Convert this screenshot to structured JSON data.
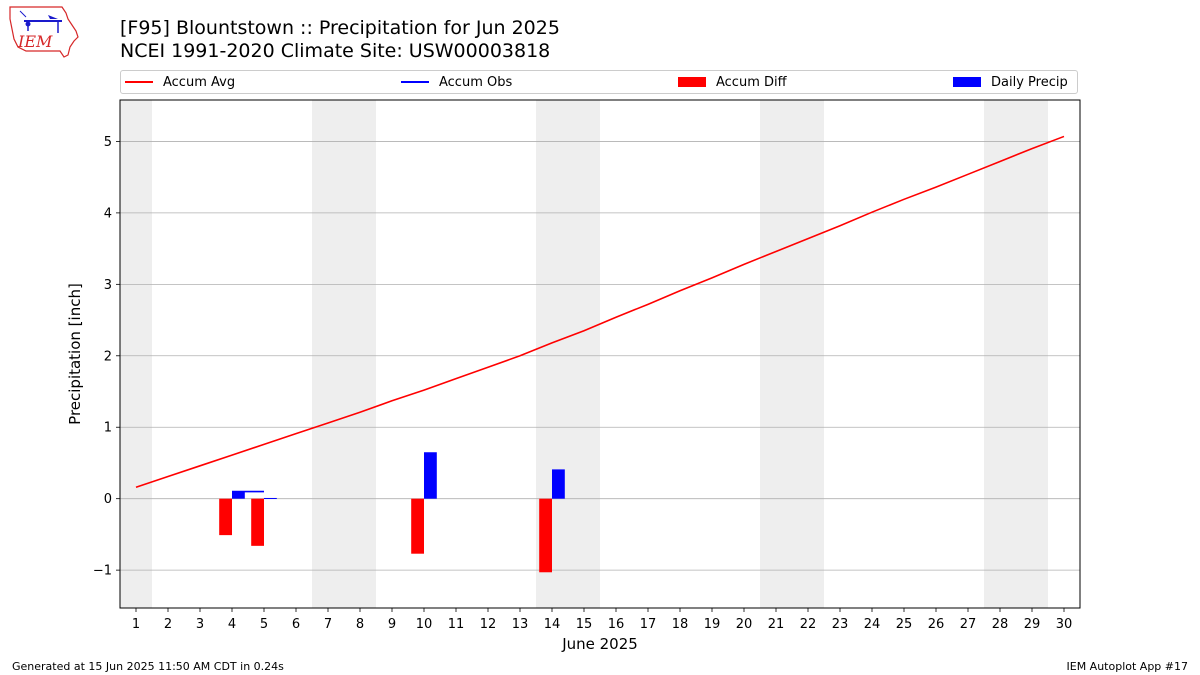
{
  "header": {
    "logo_text": "IEM",
    "title_line1": "[F95] Blountstown :: Precipitation for Jun 2025",
    "title_line2": "NCEI 1991-2020 Climate Site: USW00003818"
  },
  "legend": {
    "items": [
      {
        "label": "Accum Avg",
        "kind": "line",
        "color": "#ff0000"
      },
      {
        "label": "Accum Obs",
        "kind": "line",
        "color": "#0000ff"
      },
      {
        "label": "Accum Diff",
        "kind": "box",
        "color": "#ff0000"
      },
      {
        "label": "Daily Precip",
        "kind": "box",
        "color": "#0000ff"
      }
    ]
  },
  "footer": {
    "left": "Generated at 15 Jun 2025 11:50 AM CDT in 0.24s",
    "right": "IEM Autoplot App #17"
  },
  "chart_data": {
    "type": "bar",
    "title": "[F95] Blountstown :: Precipitation for Jun 2025",
    "subtitle": "NCEI 1991-2020 Climate Site: USW00003818",
    "xlabel": "June 2025",
    "ylabel": "Precipitation [inch]",
    "xlim": [
      0.5,
      30.5
    ],
    "ylim": [
      -1.53,
      5.58
    ],
    "yticks": [
      -1,
      0,
      1,
      2,
      3,
      4,
      5
    ],
    "ytick_labels": [
      "−1",
      "0",
      "1",
      "2",
      "3",
      "4",
      "5"
    ],
    "x": [
      1,
      2,
      3,
      4,
      5,
      6,
      7,
      8,
      9,
      10,
      11,
      12,
      13,
      14,
      15,
      16,
      17,
      18,
      19,
      20,
      21,
      22,
      23,
      24,
      25,
      26,
      27,
      28,
      29,
      30
    ],
    "grid": "horizontal",
    "weekend_days": [
      1,
      7,
      8,
      14,
      15,
      21,
      22,
      28,
      29
    ],
    "colors": {
      "avg": "#ff0000",
      "obs": "#0000ff",
      "diff": "#ff0000",
      "daily": "#0000ff",
      "weekend": "#eeeeee",
      "grid": "#b0b0b0"
    },
    "series": [
      {
        "name": "Accum Avg",
        "kind": "line",
        "values": [
          0.16,
          0.31,
          0.46,
          0.61,
          0.76,
          0.91,
          1.06,
          1.21,
          1.37,
          1.52,
          1.68,
          1.84,
          2.0,
          2.18,
          2.35,
          2.54,
          2.72,
          2.91,
          3.09,
          3.28,
          3.46,
          3.64,
          3.82,
          4.01,
          4.19,
          4.36,
          4.54,
          4.72,
          4.9,
          5.07
        ]
      },
      {
        "name": "Accum Obs",
        "kind": "line",
        "x": [
          4,
          5
        ],
        "values": [
          0.1,
          0.1
        ]
      },
      {
        "name": "Accum Diff",
        "kind": "bar",
        "x": [
          4,
          5,
          10,
          14
        ],
        "values": [
          -0.51,
          -0.66,
          -0.77,
          -1.03
        ]
      },
      {
        "name": "Daily Precip",
        "kind": "bar",
        "x": [
          4,
          5,
          10,
          14
        ],
        "values": [
          0.1,
          0.01,
          0.65,
          0.41
        ]
      }
    ]
  }
}
